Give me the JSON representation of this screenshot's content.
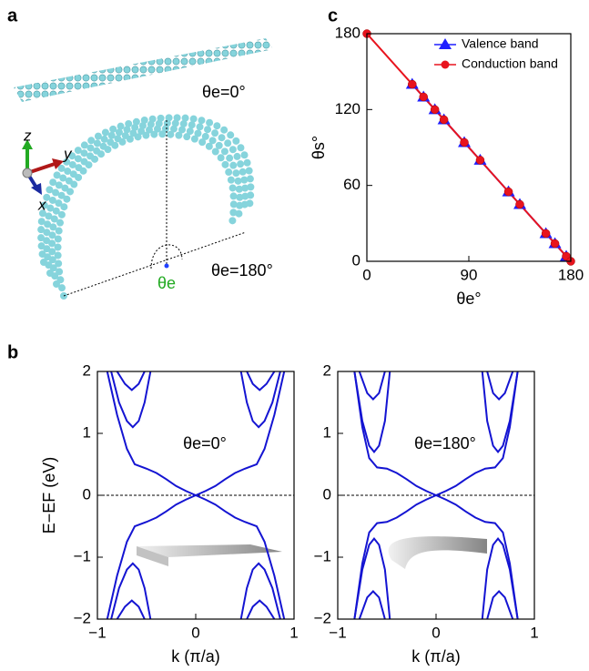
{
  "panel_labels": [
    "a",
    "b",
    "c"
  ],
  "illustration": {
    "annotations": [
      "θe=0°",
      "θe=180°",
      "θe"
    ],
    "axes": [
      "z",
      "y",
      "x"
    ]
  },
  "chart_data": [
    {
      "type": "line",
      "xlabel": "θe°",
      "ylabel": "θs°",
      "xlim": [
        0,
        180
      ],
      "ylim": [
        0,
        180
      ],
      "xticks": [
        0,
        90,
        180
      ],
      "yticks": [
        0,
        60,
        120,
        180
      ],
      "legend": "upper right",
      "series": [
        {
          "name": "Valence band",
          "color": "#1f1fff",
          "marker": "triangle",
          "line": true,
          "x": [
            40,
            50,
            60,
            68,
            86,
            100,
            125,
            135,
            158,
            166,
            176
          ],
          "values": [
            140,
            130,
            120,
            112,
            94,
            80,
            55,
            45,
            22,
            14,
            4
          ]
        },
        {
          "name": "Conduction band",
          "color": "#e8141e",
          "marker": "circle",
          "line": true,
          "x": [
            0,
            40,
            50,
            60,
            68,
            86,
            100,
            125,
            135,
            158,
            166,
            176,
            180
          ],
          "values": [
            180,
            140,
            130,
            120,
            112,
            94,
            80,
            55,
            45,
            22,
            14,
            4,
            0
          ]
        }
      ]
    },
    {
      "type": "line",
      "xlabel": "k (π/a)",
      "ylabel": "E−EF (eV)",
      "annotation": "θe=0°",
      "xlim": [
        -1,
        1
      ],
      "ylim": [
        -2,
        2
      ],
      "xticks": [
        {
          "value": -1,
          "label": "−1"
        },
        0,
        1
      ],
      "yticks": [
        {
          "value": -2,
          "label": "−2"
        },
        {
          "value": -1,
          "label": "−1"
        },
        0,
        1,
        2
      ],
      "hline": 0,
      "series": [
        {
          "color": "#1414d2",
          "x": [
            -0.9,
            -0.8,
            -0.7,
            -0.62,
            -0.5,
            -0.4,
            -0.3,
            -0.2,
            -0.1,
            0,
            0.1,
            0.2,
            0.3,
            0.4,
            0.5,
            0.62,
            0.7,
            0.8,
            0.9
          ],
          "values": [
            2,
            1.3,
            0.75,
            0.5,
            0.43,
            0.36,
            0.26,
            0.15,
            0.07,
            0,
            -0.07,
            -0.15,
            -0.26,
            -0.36,
            -0.43,
            -0.5,
            -0.75,
            -1.3,
            -2
          ]
        },
        {
          "color": "#1414d2",
          "x": [
            -0.9,
            -0.8,
            -0.7,
            -0.62,
            -0.5,
            -0.4,
            -0.3,
            -0.2,
            -0.1,
            0,
            0.1,
            0.2,
            0.3,
            0.4,
            0.5,
            0.62,
            0.7,
            0.8,
            0.9
          ],
          "values": [
            -2,
            -1.3,
            -0.75,
            -0.5,
            -0.43,
            -0.36,
            -0.26,
            -0.15,
            -0.07,
            0,
            0.07,
            0.15,
            0.26,
            0.36,
            0.43,
            0.5,
            0.75,
            1.3,
            2
          ]
        },
        {
          "color": "#1414d2",
          "x": [
            -0.86,
            -0.78,
            -0.7,
            -0.64,
            -0.58,
            -0.52,
            -0.46
          ],
          "values": [
            2,
            1.5,
            1.2,
            1.1,
            1.2,
            1.5,
            2
          ]
        },
        {
          "color": "#1414d2",
          "x": [
            -0.8,
            -0.72,
            -0.65,
            -0.58,
            -0.52
          ],
          "values": [
            2,
            1.8,
            1.7,
            1.8,
            2
          ]
        },
        {
          "color": "#1414d2",
          "x": [
            0.46,
            0.52,
            0.58,
            0.64,
            0.7,
            0.78,
            0.86
          ],
          "values": [
            2,
            1.5,
            1.2,
            1.1,
            1.2,
            1.5,
            2
          ]
        },
        {
          "color": "#1414d2",
          "x": [
            0.52,
            0.58,
            0.65,
            0.72,
            0.8
          ],
          "values": [
            2,
            1.8,
            1.7,
            1.8,
            2
          ]
        },
        {
          "color": "#1414d2",
          "x": [
            -0.86,
            -0.78,
            -0.7,
            -0.64,
            -0.58,
            -0.52,
            -0.46
          ],
          "values": [
            -2,
            -1.5,
            -1.2,
            -1.1,
            -1.2,
            -1.5,
            -2
          ]
        },
        {
          "color": "#1414d2",
          "x": [
            -0.8,
            -0.72,
            -0.65,
            -0.58,
            -0.52
          ],
          "values": [
            -2,
            -1.8,
            -1.7,
            -1.8,
            -2
          ]
        },
        {
          "color": "#1414d2",
          "x": [
            0.46,
            0.52,
            0.58,
            0.64,
            0.7,
            0.78,
            0.86
          ],
          "values": [
            -2,
            -1.5,
            -1.2,
            -1.1,
            -1.2,
            -1.5,
            -2
          ]
        },
        {
          "color": "#1414d2",
          "x": [
            0.52,
            0.58,
            0.65,
            0.72,
            0.8
          ],
          "values": [
            -2,
            -1.8,
            -1.7,
            -1.8,
            -2
          ]
        }
      ]
    },
    {
      "type": "line",
      "xlabel": "k (π/a)",
      "annotation": "θe=180°",
      "xlim": [
        -1,
        1
      ],
      "ylim": [
        -2,
        2
      ],
      "xticks": [
        {
          "value": -1,
          "label": "−1"
        },
        0,
        1
      ],
      "yticks": [
        {
          "value": -2,
          "label": "−2"
        },
        {
          "value": -1,
          "label": "−1"
        },
        0,
        1,
        2
      ],
      "hline": 0,
      "series": [
        {
          "color": "#1414d2",
          "x": [
            -0.83,
            -0.75,
            -0.68,
            -0.6,
            -0.5,
            -0.4,
            -0.3,
            -0.2,
            -0.1,
            0,
            0.1,
            0.2,
            0.3,
            0.4,
            0.5,
            0.6,
            0.68,
            0.75,
            0.83
          ],
          "values": [
            2,
            1.1,
            0.6,
            0.45,
            0.43,
            0.36,
            0.26,
            0.15,
            0.07,
            0,
            -0.07,
            -0.15,
            -0.26,
            -0.36,
            -0.43,
            -0.45,
            -0.6,
            -1.1,
            -2
          ]
        },
        {
          "color": "#1414d2",
          "x": [
            -0.83,
            -0.75,
            -0.68,
            -0.6,
            -0.5,
            -0.4,
            -0.3,
            -0.2,
            -0.1,
            0,
            0.1,
            0.2,
            0.3,
            0.4,
            0.5,
            0.6,
            0.68,
            0.75,
            0.83
          ],
          "values": [
            -2,
            -1.1,
            -0.6,
            -0.45,
            -0.43,
            -0.36,
            -0.26,
            -0.15,
            -0.07,
            0,
            0.07,
            0.15,
            0.26,
            0.36,
            0.43,
            0.45,
            0.6,
            1.1,
            2
          ]
        },
        {
          "color": "#1414d2",
          "x": [
            -0.83,
            -0.75,
            -0.68,
            -0.63,
            -0.58,
            -0.52,
            -0.47
          ],
          "values": [
            2,
            1.2,
            0.8,
            0.7,
            0.8,
            1.2,
            2
          ]
        },
        {
          "color": "#1414d2",
          "x": [
            -0.78,
            -0.7,
            -0.64,
            -0.58,
            -0.52
          ],
          "values": [
            2,
            1.65,
            1.55,
            1.65,
            2
          ]
        },
        {
          "color": "#1414d2",
          "x": [
            0.47,
            0.52,
            0.58,
            0.63,
            0.68,
            0.75,
            0.83
          ],
          "values": [
            2,
            1.2,
            0.8,
            0.7,
            0.8,
            1.2,
            2
          ]
        },
        {
          "color": "#1414d2",
          "x": [
            0.52,
            0.58,
            0.64,
            0.7,
            0.78
          ],
          "values": [
            2,
            1.65,
            1.55,
            1.65,
            2
          ]
        },
        {
          "color": "#1414d2",
          "x": [
            -0.83,
            -0.75,
            -0.68,
            -0.63,
            -0.58,
            -0.52,
            -0.47
          ],
          "values": [
            -2,
            -1.2,
            -0.8,
            -0.7,
            -0.8,
            -1.2,
            -2
          ]
        },
        {
          "color": "#1414d2",
          "x": [
            -0.78,
            -0.7,
            -0.64,
            -0.58,
            -0.52
          ],
          "values": [
            -2,
            -1.65,
            -1.55,
            -1.65,
            -2
          ]
        },
        {
          "color": "#1414d2",
          "x": [
            0.47,
            0.52,
            0.58,
            0.63,
            0.68,
            0.75,
            0.83
          ],
          "values": [
            -2,
            -1.2,
            -0.8,
            -0.7,
            -0.8,
            -1.2,
            -2
          ]
        },
        {
          "color": "#1414d2",
          "x": [
            0.52,
            0.58,
            0.64,
            0.7,
            0.78
          ],
          "values": [
            -2,
            -1.65,
            -1.55,
            -1.65,
            -2
          ]
        }
      ]
    }
  ]
}
